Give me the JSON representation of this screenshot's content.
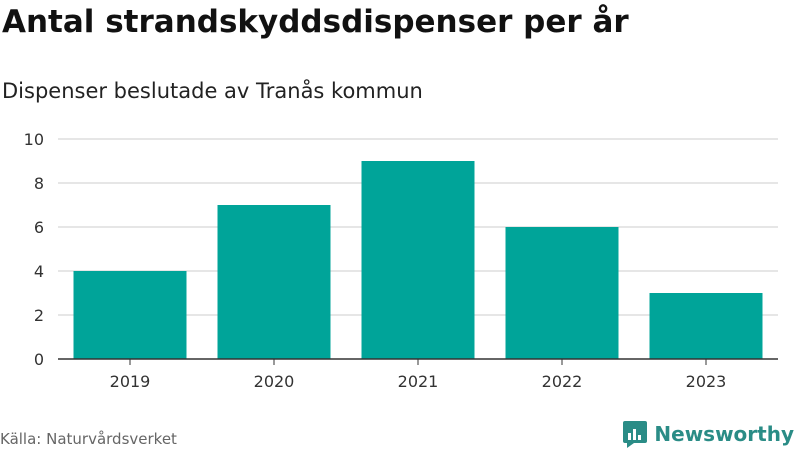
{
  "header": {
    "title": "Antal strandskyddsdispenser per år",
    "subtitle": "Dispenser beslutade av Tranås kommun"
  },
  "footer": {
    "source": "Källa: Naturvårdsverket",
    "brand": "Newsworthy"
  },
  "colors": {
    "bar": "#00a499",
    "grid": "#dddddd",
    "axis": "#333333",
    "brand": "#2a8c86"
  },
  "chart_data": {
    "type": "bar",
    "title": "Antal strandskyddsdispenser per år",
    "subtitle": "Dispenser beslutade av Tranås kommun",
    "categories": [
      "2019",
      "2020",
      "2021",
      "2022",
      "2023"
    ],
    "values": [
      4,
      7,
      9,
      6,
      3
    ],
    "yticks": [
      "0",
      "2",
      "4",
      "6",
      "8",
      "10"
    ],
    "ylim": [
      0,
      10
    ],
    "grid": true,
    "legend": "none"
  }
}
